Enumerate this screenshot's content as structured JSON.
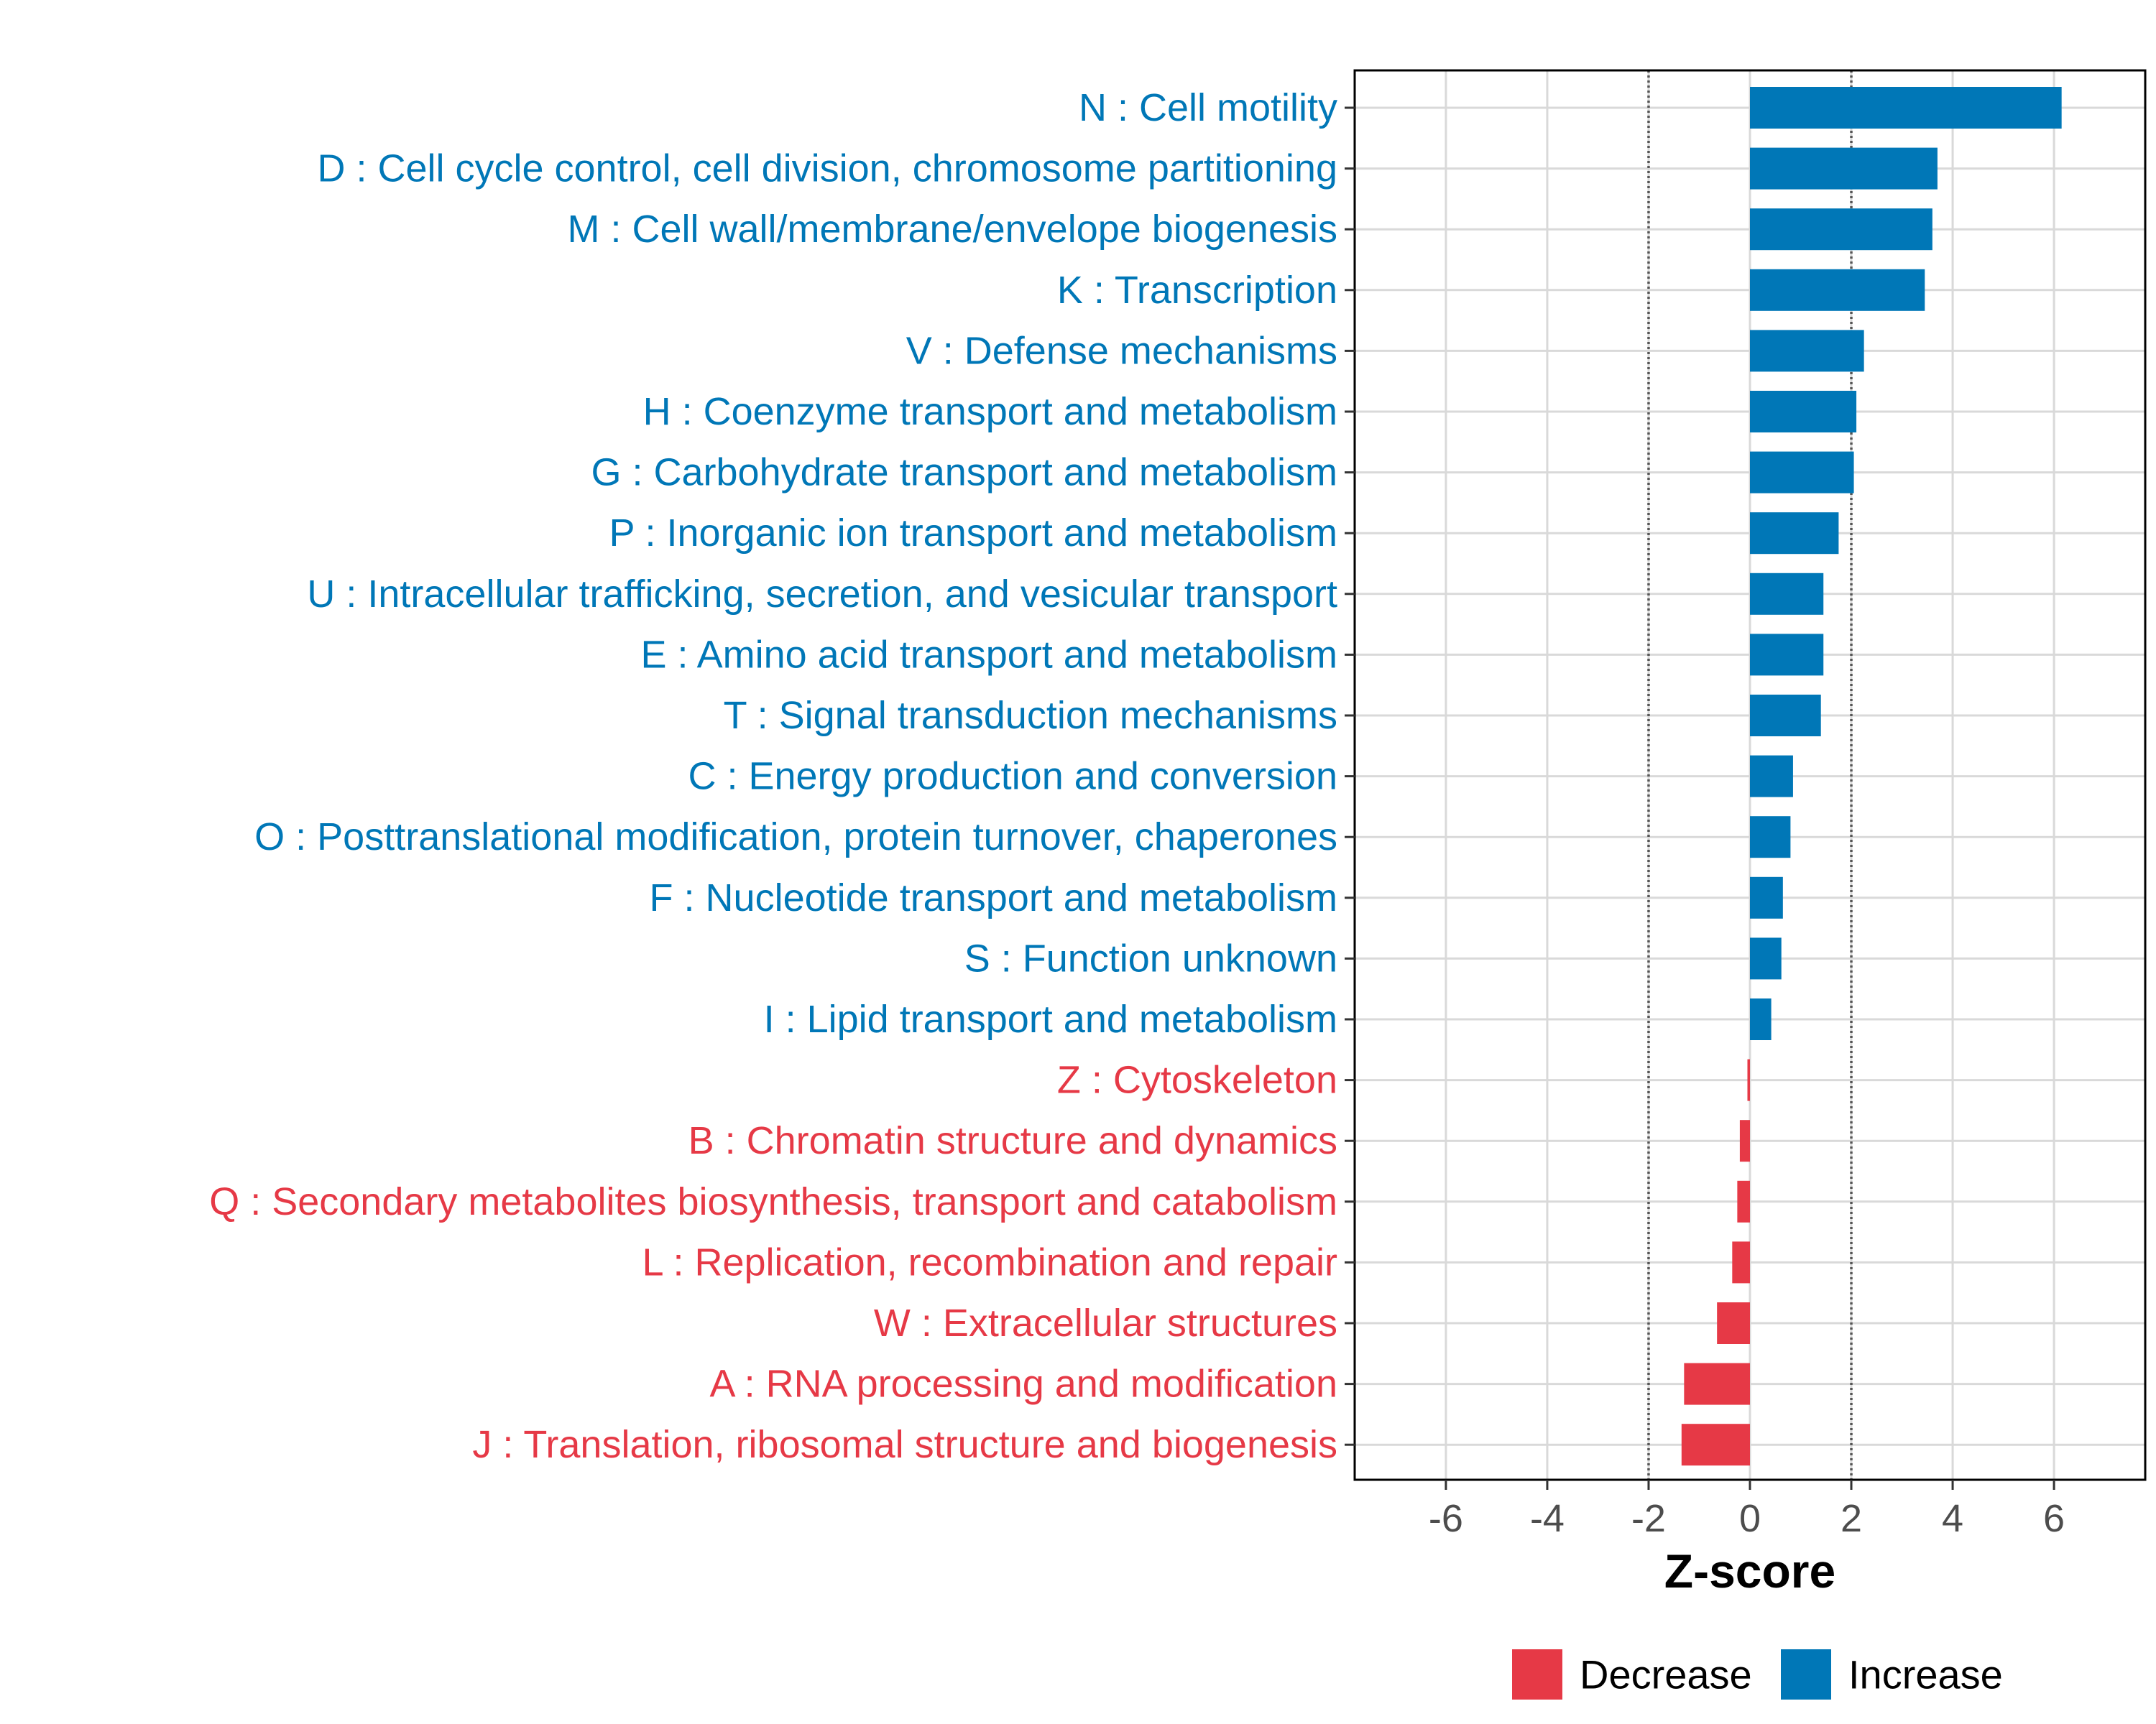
{
  "colors": {
    "increase": "#0077b7",
    "decrease": "#e63946",
    "grid": "#d9d9d9",
    "threshold": "#555555"
  },
  "chart_data": {
    "type": "bar",
    "orientation": "horizontal",
    "categories": [
      "N : Cell motility",
      "D : Cell cycle control, cell division, chromosome partitioning",
      "M : Cell wall/membrane/envelope biogenesis",
      "K : Transcription",
      "V : Defense mechanisms",
      "H : Coenzyme transport and metabolism",
      "G : Carbohydrate transport and metabolism",
      "P : Inorganic ion transport and metabolism",
      "U : Intracellular trafficking, secretion, and vesicular transport",
      "E : Amino acid transport and metabolism",
      "T : Signal transduction mechanisms",
      "C : Energy production and conversion",
      "O : Posttranslational modification, protein turnover, chaperones",
      "F : Nucleotide transport and metabolism",
      "S : Function unknown",
      "I : Lipid transport and metabolism",
      "Z : Cytoskeleton",
      "B : Chromatin structure and dynamics",
      "Q : Secondary metabolites biosynthesis, transport and catabolism",
      "L : Replication, recombination and repair",
      "W : Extracellular structures",
      "A : RNA processing and modification",
      "J : Translation, ribosomal structure and biogenesis"
    ],
    "values": [
      6.15,
      3.7,
      3.6,
      3.45,
      2.25,
      2.1,
      2.05,
      1.75,
      1.45,
      1.45,
      1.4,
      0.85,
      0.8,
      0.65,
      0.62,
      0.42,
      -0.05,
      -0.2,
      -0.25,
      -0.35,
      -0.65,
      -1.3,
      -1.35
    ],
    "groups": [
      "Increase",
      "Increase",
      "Increase",
      "Increase",
      "Increase",
      "Increase",
      "Increase",
      "Increase",
      "Increase",
      "Increase",
      "Increase",
      "Increase",
      "Increase",
      "Increase",
      "Increase",
      "Increase",
      "Decrease",
      "Decrease",
      "Decrease",
      "Decrease",
      "Decrease",
      "Decrease",
      "Decrease"
    ],
    "xlabel": "Z-score",
    "ylabel": "",
    "xlim": [
      -7.8,
      7.8
    ],
    "xticks": [
      -6,
      -4,
      -2,
      0,
      2,
      4,
      6
    ],
    "xtick_labels": [
      "-6",
      "-4",
      "-2",
      "0",
      "2",
      "4",
      "6"
    ],
    "threshold_lines": [
      -2,
      2
    ],
    "grid": true,
    "legend": {
      "position": "bottom",
      "entries": [
        {
          "label": "Decrease",
          "color": "#e63946"
        },
        {
          "label": "Increase",
          "color": "#0077b7"
        }
      ]
    }
  }
}
